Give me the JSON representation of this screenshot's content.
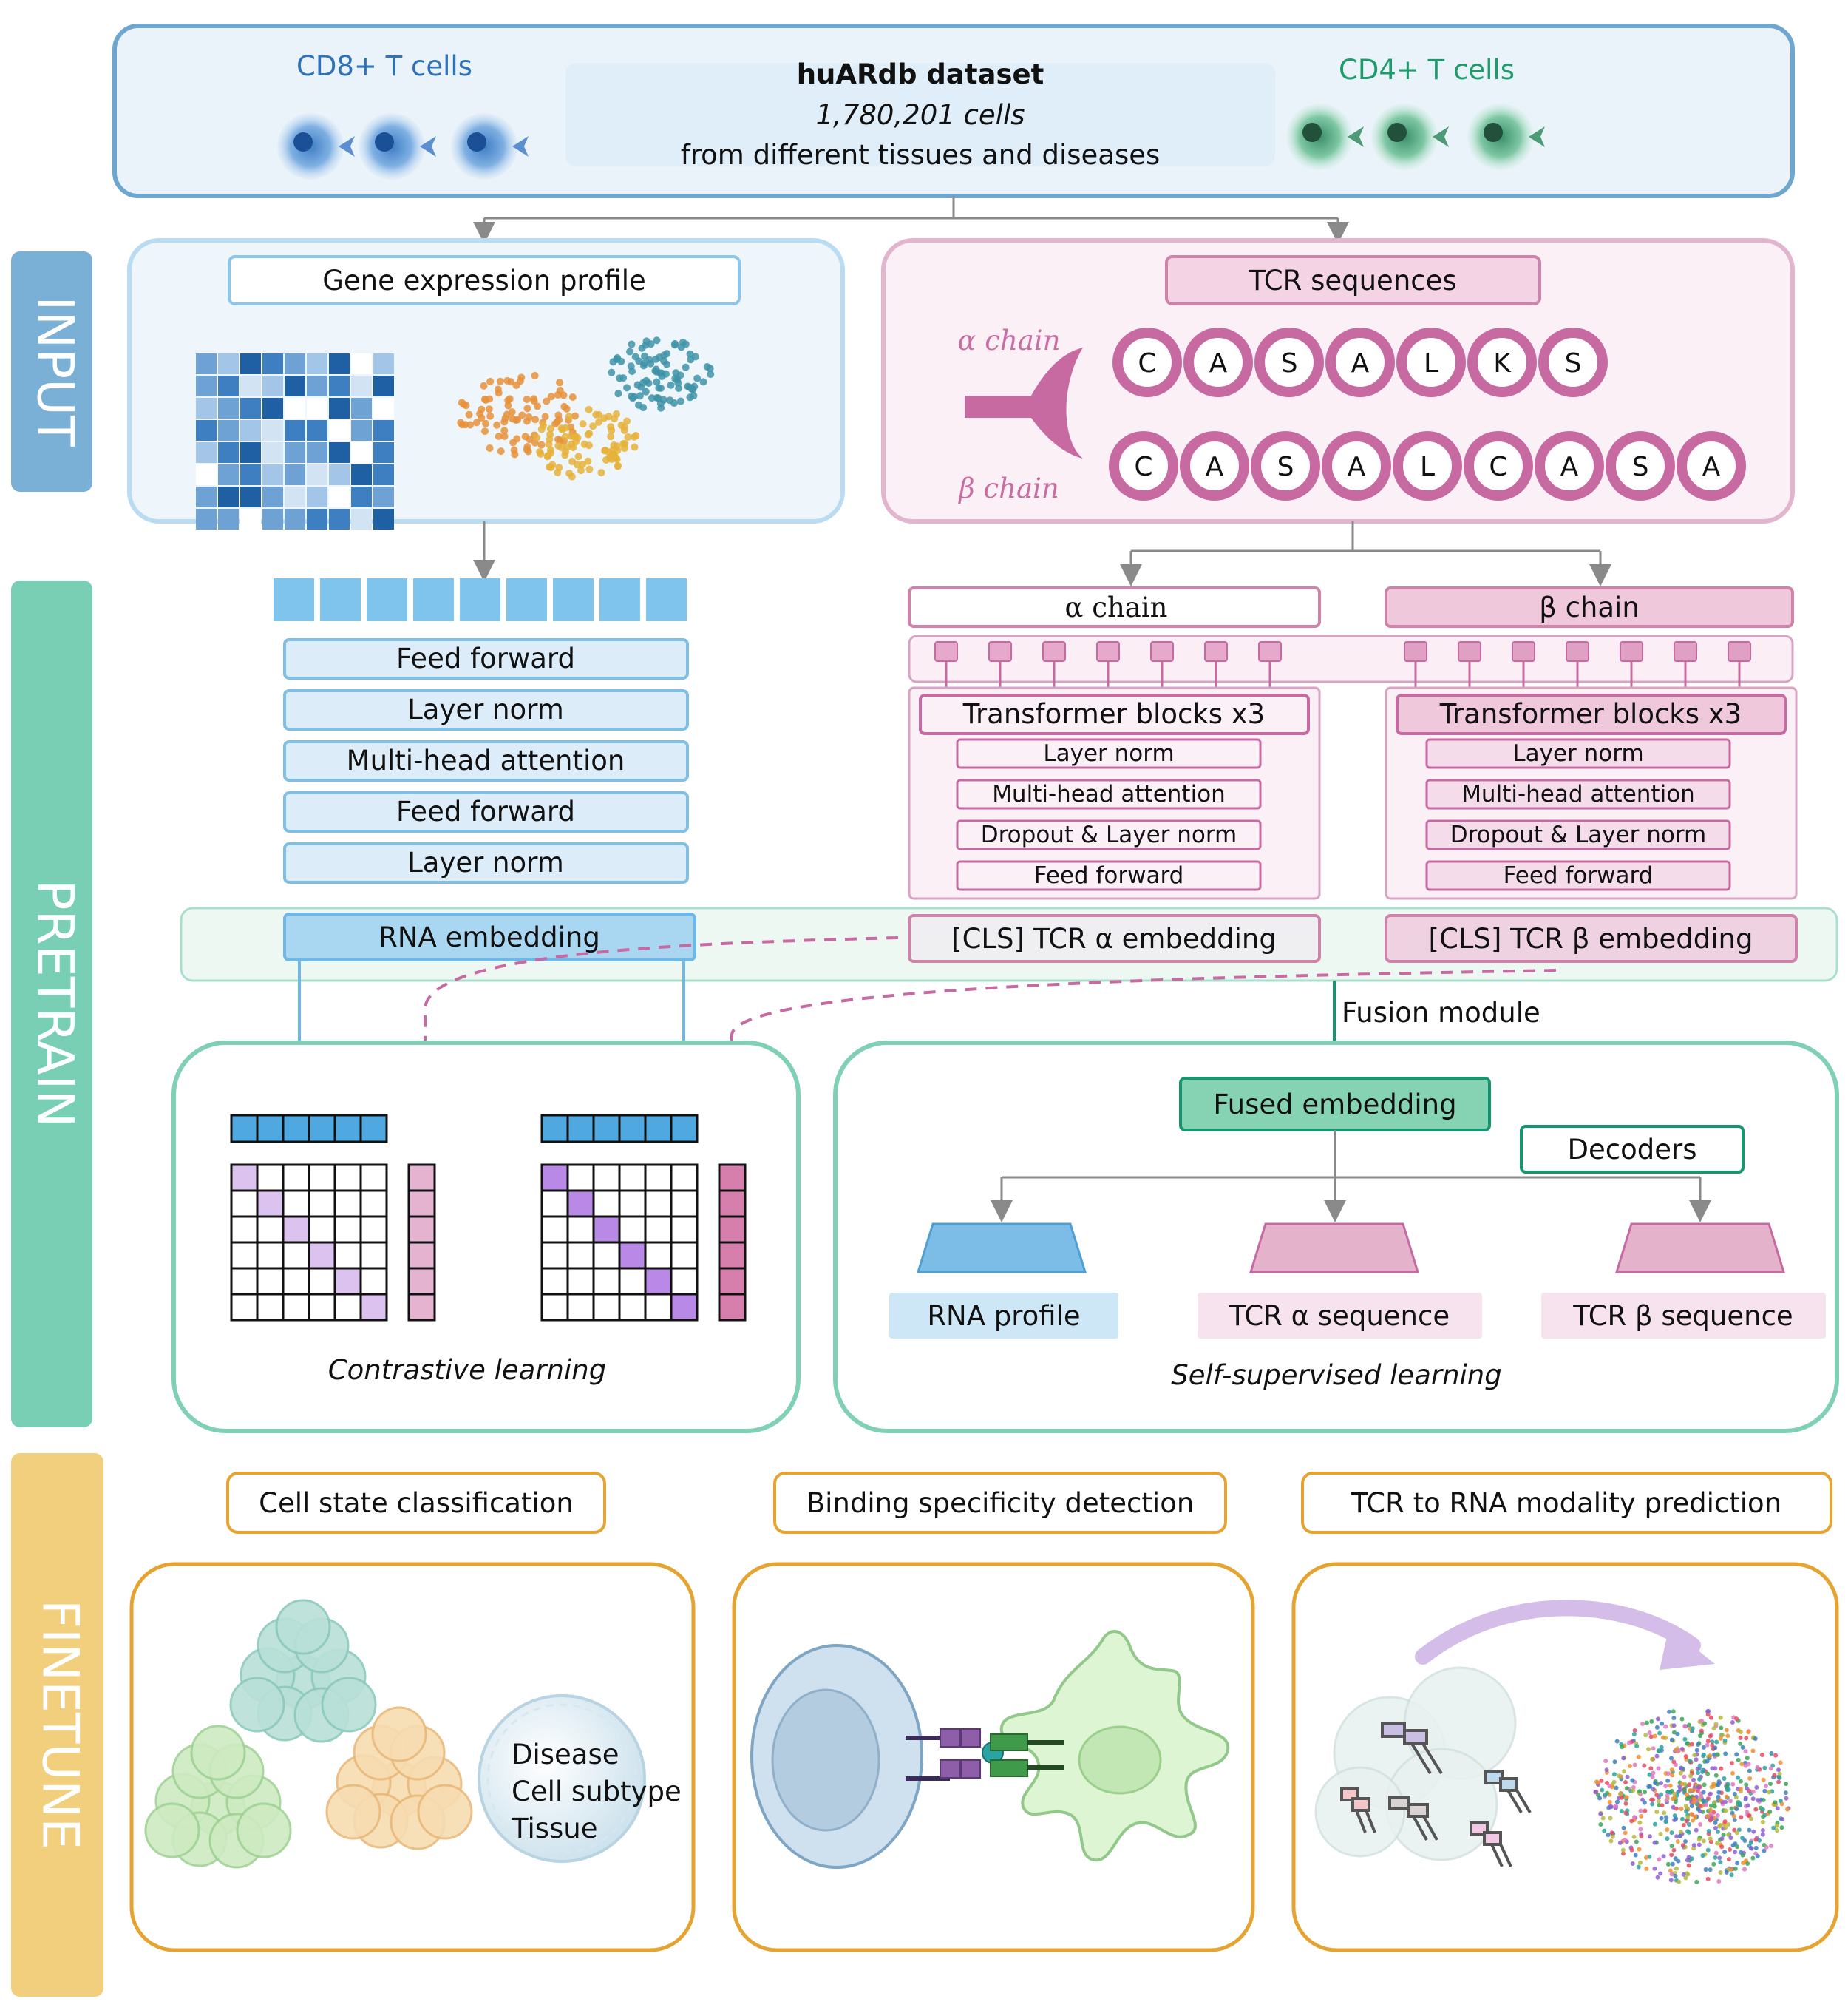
{
  "dataset": {
    "cd8_label": "CD8+ T cells",
    "cd4_label": "CD4+ T cells",
    "title": "huARdb dataset",
    "count": "1,780,201 cells",
    "source": "from different tissues and diseases"
  },
  "stages": {
    "input": "INPUT",
    "pretrain": "PRETRAIN",
    "finetune": "FINETUNE"
  },
  "input": {
    "gene_title": "Gene expression profile",
    "tcr_title": "TCR sequences",
    "alpha_chain_label": "α chain",
    "beta_chain_label": "β chain",
    "alpha_residues": [
      "C",
      "A",
      "S",
      "A",
      "L",
      "K",
      "S"
    ],
    "beta_residues": [
      "C",
      "A",
      "S",
      "A",
      "L",
      "C",
      "A",
      "S",
      "A"
    ]
  },
  "pretrain": {
    "rna_layers": [
      "Feed forward",
      "Layer norm",
      "Multi-head attention",
      "Feed forward",
      "Layer norm"
    ],
    "rna_embedding": "RNA embedding",
    "alpha_header": "α chain",
    "beta_header": "β chain",
    "transformer_title": "Transformer blocks x3",
    "tcr_layers": [
      "Layer norm",
      "Multi-head attention",
      "Dropout & Layer norm",
      "Feed forward"
    ],
    "cls_alpha": "[CLS] TCR α embedding",
    "cls_beta": "[CLS] TCR β embedding",
    "fusion_module": "Fusion module",
    "fused_embedding": "Fused embedding",
    "decoders": "Decoders",
    "outputs": [
      "RNA profile",
      "TCR α sequence",
      "TCR β sequence"
    ],
    "contrastive": "Contrastive learning",
    "self_supervised": "Self-supervised learning"
  },
  "finetune": {
    "tasks": [
      "Cell state classification",
      "Binding specificity detection",
      "TCR to RNA modality prediction"
    ],
    "labels": [
      "Disease",
      "Cell subtype",
      "Tissue"
    ]
  },
  "colors": {
    "blue": "#7fbfe6",
    "pink": "#d485b0",
    "teal": "#6fcab2",
    "orange": "#e5a431",
    "input_band": "#7aafd6",
    "pretrain_band": "#78cfb3",
    "finetune_band": "#f2cf7c"
  }
}
